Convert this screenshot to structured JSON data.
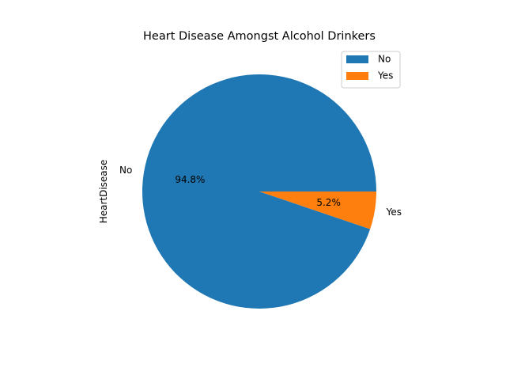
{
  "chart_data": {
    "type": "pie",
    "title": "Heart Disease Amongst Alcohol Drinkers",
    "ylabel": "HeartDisease",
    "categories": [
      "No",
      "Yes"
    ],
    "values": [
      94.8,
      5.2
    ],
    "value_labels": [
      "94.8%",
      "5.2%"
    ],
    "colors": [
      "#1f77b4",
      "#ff7f0e"
    ],
    "legend": {
      "placement": "top-right",
      "entries": [
        "No",
        "Yes"
      ]
    }
  }
}
